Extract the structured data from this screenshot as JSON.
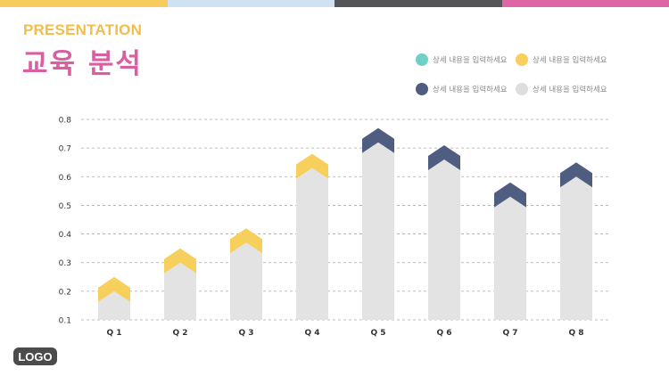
{
  "top_bar_colors": [
    "#f7cb5c",
    "#cfe2f3",
    "#555558",
    "#df66a6"
  ],
  "header": {
    "subtitle": "PRESENTATION",
    "title": "교육 분석",
    "subtitle_color": "#f2bd4a",
    "title_color": "#da5fa2"
  },
  "legend": [
    {
      "label": "상세 내용을 입력하세요",
      "color": "#6fd1c4"
    },
    {
      "label": "상세 내용을 입력하세요",
      "color": "#f7cf5d"
    },
    {
      "label": "상세 내용을 입력하세요",
      "color": "#4f5e80"
    },
    {
      "label": "상세 내용을 입력하세요",
      "color": "#dedede"
    }
  ],
  "chart_data": {
    "type": "bar",
    "categories": [
      "Q 1",
      "Q 2",
      "Q 3",
      "Q 4",
      "Q 5",
      "Q 6",
      "Q 7",
      "Q 8"
    ],
    "values": [
      0.2,
      0.3,
      0.37,
      0.63,
      0.72,
      0.66,
      0.53,
      0.6
    ],
    "arrow_colors": [
      "#f7cf5d",
      "#f7cf5d",
      "#f7cf5d",
      "#f7cf5d",
      "#4f5e80",
      "#4f5e80",
      "#4f5e80",
      "#4f5e80"
    ],
    "bar_color": "#e3e3e3",
    "ylim": [
      0.1,
      0.8
    ],
    "yticks": [
      "0.8",
      "0.7",
      "0.6",
      "0.5",
      "0.4",
      "0.3",
      "0.2",
      "0.1"
    ],
    "ytick_values": [
      0.8,
      0.7,
      0.6,
      0.5,
      0.4,
      0.3,
      0.2,
      0.1
    ],
    "grid": true,
    "title": "",
    "xlabel": "",
    "ylabel": ""
  },
  "logo": {
    "text": "LOGO"
  }
}
